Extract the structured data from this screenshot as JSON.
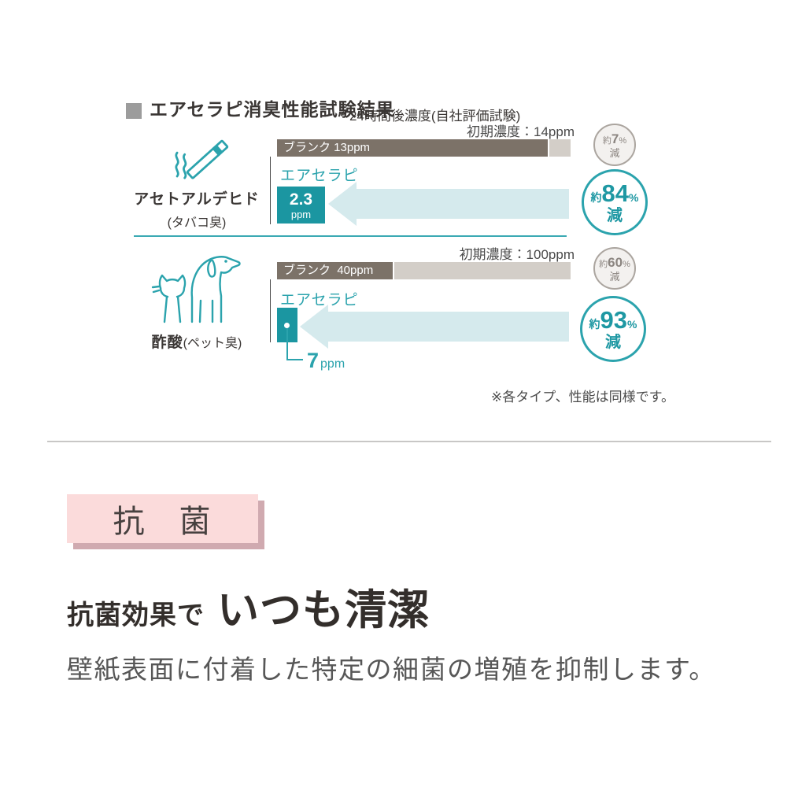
{
  "colors": {
    "teal": "#2ba3ad",
    "teal_dark": "#1b96a1",
    "teal_light_arrow": "#d5eaed",
    "bar_dark": "#7c7268",
    "bar_light": "#d3cec8",
    "gray_badge": "#8b8580",
    "pink": "#fbdbdb",
    "pink_shadow": "#d0aab0"
  },
  "chart": {
    "title": "エアセラピ消臭性能試験結果",
    "subtitle": "24時間後濃度(自社評価試験)",
    "note": "※各タイプ、性能は同様です。",
    "rows": [
      {
        "substance": "アセトアルデヒド",
        "substance_note": "(タバコ臭)",
        "initial_label": "初期濃度：14ppm",
        "blank_label": "ブランク 13ppm",
        "product_label": "エアセラピ",
        "result": {
          "value": "2.3",
          "unit": "ppm"
        },
        "small_badge": {
          "about": "約",
          "value": "7",
          "pct": "%",
          "reduce": "減"
        },
        "big_badge": {
          "about": "約",
          "value": "84",
          "pct": "%",
          "reduce": "減"
        }
      },
      {
        "substance": "酢酸",
        "substance_note": "(ペット臭)",
        "initial_label": "初期濃度：100ppm",
        "blank_label": "ブランク  40ppm",
        "product_label": "エアセラピ",
        "callout": {
          "value": "7",
          "unit": "ppm"
        },
        "small_badge": {
          "about": "約",
          "value": "60",
          "pct": "%",
          "reduce": "減"
        },
        "big_badge": {
          "about": "約",
          "value": "93",
          "pct": "%",
          "reduce": "減"
        }
      }
    ]
  },
  "chart_data": {
    "type": "bar",
    "orientation": "horizontal",
    "title": "エアセラピ消臭性能試験結果",
    "subtitle": "24時間後濃度(自社評価試験)",
    "unit": "ppm",
    "series_labels": {
      "blank": "ブランク",
      "product": "エアセラピ"
    },
    "groups": [
      {
        "substance": "アセトアルデヒド",
        "odor": "タバコ臭",
        "initial_ppm": 14,
        "blank_ppm": 13,
        "airtherapy_ppm": 2.3,
        "blank_reduction": "約7%減",
        "airtherapy_reduction": "約84%減"
      },
      {
        "substance": "酢酸",
        "odor": "ペット臭",
        "initial_ppm": 100,
        "blank_ppm": 40,
        "airtherapy_ppm": 7,
        "blank_reduction": "約60%減",
        "airtherapy_reduction": "約93%減"
      }
    ],
    "note": "※各タイプ、性能は同様です。"
  },
  "antibacterial": {
    "badge": "抗　菌",
    "heading_small": "抗菌効果で",
    "heading_large": "いつも清潔",
    "body": "壁紙表面に付着した特定の細菌の増殖を抑制します。"
  }
}
